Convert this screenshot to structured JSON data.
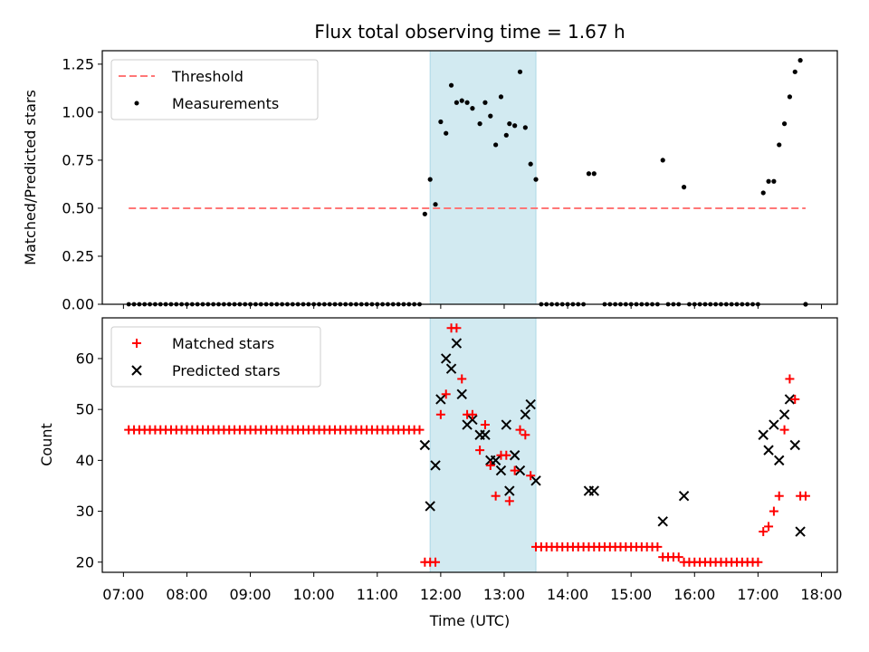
{
  "colors": {
    "threshold": "#ff7777",
    "measurement": "#000000",
    "matched": "#ff0000",
    "predicted": "#000000",
    "highlight": "#add8e6"
  },
  "chart_data": [
    {
      "type": "scatter",
      "title": "Flux total observing time = 1.67 h",
      "xlabel": "",
      "ylabel": "Matched/Predicted stars",
      "x_is_time": true,
      "xlim": [
        "06:40",
        "18:15"
      ],
      "ylim": [
        0,
        1.32
      ],
      "yticks": [
        0,
        0.25,
        0.5,
        0.75,
        1.0,
        1.25
      ],
      "ytick_labels": [
        "0.00",
        "0.25",
        "0.50",
        "0.75",
        "1.00",
        "1.25"
      ],
      "highlight": {
        "x0": "11:50",
        "x1": "13:30"
      },
      "legend": {
        "position": "top-left",
        "entries": [
          "Threshold",
          "Measurements"
        ]
      },
      "threshold": {
        "name": "Threshold",
        "y": 0.5,
        "x0": "07:05",
        "x1": "17:45"
      },
      "series": [
        {
          "name": "Measurements",
          "points": [
            [
              "11:45",
              0.47
            ],
            [
              "11:50",
              0.65
            ],
            [
              "11:55",
              0.52
            ],
            [
              "12:00",
              0.95
            ],
            [
              "12:05",
              0.89
            ],
            [
              "12:10",
              1.14
            ],
            [
              "12:15",
              1.05
            ],
            [
              "12:20",
              1.06
            ],
            [
              "12:25",
              1.05
            ],
            [
              "12:30",
              1.02
            ],
            [
              "12:37",
              0.94
            ],
            [
              "12:42",
              1.05
            ],
            [
              "12:47",
              0.98
            ],
            [
              "12:52",
              0.83
            ],
            [
              "12:57",
              1.08
            ],
            [
              "13:02",
              0.88
            ],
            [
              "13:05",
              0.94
            ],
            [
              "13:10",
              0.93
            ],
            [
              "13:15",
              1.21
            ],
            [
              "13:20",
              0.92
            ],
            [
              "13:25",
              0.73
            ],
            [
              "13:30",
              0.65
            ],
            [
              "14:20",
              0.68
            ],
            [
              "14:25",
              0.68
            ],
            [
              "15:30",
              0.75
            ],
            [
              "15:50",
              0.61
            ],
            [
              "17:05",
              0.58
            ],
            [
              "17:10",
              0.64
            ],
            [
              "17:15",
              0.64
            ],
            [
              "17:20",
              0.83
            ],
            [
              "17:25",
              0.94
            ],
            [
              "17:30",
              1.08
            ],
            [
              "17:35",
              1.21
            ],
            [
              "17:40",
              1.27
            ],
            [
              "17:45",
              0.0
            ]
          ],
          "zero_ranges": [
            [
              "07:05",
              "11:40",
              5
            ],
            [
              "13:35",
              "14:15",
              5
            ],
            [
              "14:35",
              "15:25",
              5
            ],
            [
              "15:35",
              "15:45",
              5
            ],
            [
              "15:55",
              "17:00",
              5
            ]
          ]
        }
      ]
    },
    {
      "type": "scatter",
      "title": "",
      "xlabel": "Time (UTC)",
      "ylabel": "Count",
      "x_is_time": true,
      "xlim": [
        "06:40",
        "18:15"
      ],
      "ylim": [
        18,
        68
      ],
      "yticks": [
        20,
        30,
        40,
        50,
        60
      ],
      "ytick_labels": [
        "20",
        "30",
        "40",
        "50",
        "60"
      ],
      "xticks": [
        "07:00",
        "08:00",
        "09:00",
        "10:00",
        "11:00",
        "12:00",
        "13:00",
        "14:00",
        "15:00",
        "16:00",
        "17:00",
        "18:00"
      ],
      "highlight": {
        "x0": "11:50",
        "x1": "13:30"
      },
      "legend": {
        "position": "top-left",
        "entries": [
          "Matched stars",
          "Predicted stars"
        ]
      },
      "series": [
        {
          "name": "Matched stars",
          "points": [
            [
              "11:45",
              20
            ],
            [
              "11:50",
              20
            ],
            [
              "11:55",
              20
            ],
            [
              "12:00",
              49
            ],
            [
              "12:05",
              53
            ],
            [
              "12:10",
              66
            ],
            [
              "12:15",
              66
            ],
            [
              "12:20",
              56
            ],
            [
              "12:25",
              49
            ],
            [
              "12:30",
              49
            ],
            [
              "12:37",
              42
            ],
            [
              "12:42",
              47
            ],
            [
              "12:47",
              39
            ],
            [
              "12:52",
              33
            ],
            [
              "12:57",
              41
            ],
            [
              "13:02",
              41
            ],
            [
              "13:05",
              32
            ],
            [
              "13:10",
              38
            ],
            [
              "13:15",
              46
            ],
            [
              "13:20",
              45
            ],
            [
              "13:25",
              37
            ],
            [
              "15:30",
              21
            ],
            [
              "15:35",
              21
            ],
            [
              "15:40",
              21
            ],
            [
              "15:45",
              21
            ],
            [
              "17:05",
              26
            ],
            [
              "17:10",
              27
            ],
            [
              "17:15",
              30
            ],
            [
              "17:20",
              33
            ],
            [
              "17:25",
              46
            ],
            [
              "17:30",
              56
            ],
            [
              "17:35",
              52
            ],
            [
              "17:40",
              33
            ],
            [
              "17:45",
              33
            ]
          ],
          "constant_ranges": [
            [
              "07:05",
              "11:40",
              5,
              46
            ],
            [
              "13:30",
              "15:25",
              5,
              23
            ],
            [
              "15:50",
              "17:00",
              5,
              20
            ]
          ]
        },
        {
          "name": "Predicted stars",
          "points": [
            [
              "11:45",
              43
            ],
            [
              "11:50",
              31
            ],
            [
              "11:55",
              39
            ],
            [
              "12:00",
              52
            ],
            [
              "12:05",
              60
            ],
            [
              "12:10",
              58
            ],
            [
              "12:15",
              63
            ],
            [
              "12:20",
              53
            ],
            [
              "12:25",
              47
            ],
            [
              "12:30",
              48
            ],
            [
              "12:37",
              45
            ],
            [
              "12:42",
              45
            ],
            [
              "12:47",
              40
            ],
            [
              "12:52",
              40
            ],
            [
              "12:57",
              38
            ],
            [
              "13:02",
              47
            ],
            [
              "13:05",
              34
            ],
            [
              "13:10",
              41
            ],
            [
              "13:15",
              38
            ],
            [
              "13:20",
              49
            ],
            [
              "13:25",
              51
            ],
            [
              "13:30",
              36
            ],
            [
              "14:20",
              34
            ],
            [
              "14:25",
              34
            ],
            [
              "15:30",
              28
            ],
            [
              "15:50",
              33
            ],
            [
              "17:05",
              45
            ],
            [
              "17:10",
              42
            ],
            [
              "17:15",
              47
            ],
            [
              "17:20",
              40
            ],
            [
              "17:25",
              49
            ],
            [
              "17:30",
              52
            ],
            [
              "17:35",
              43
            ],
            [
              "17:40",
              26
            ]
          ]
        }
      ]
    }
  ]
}
